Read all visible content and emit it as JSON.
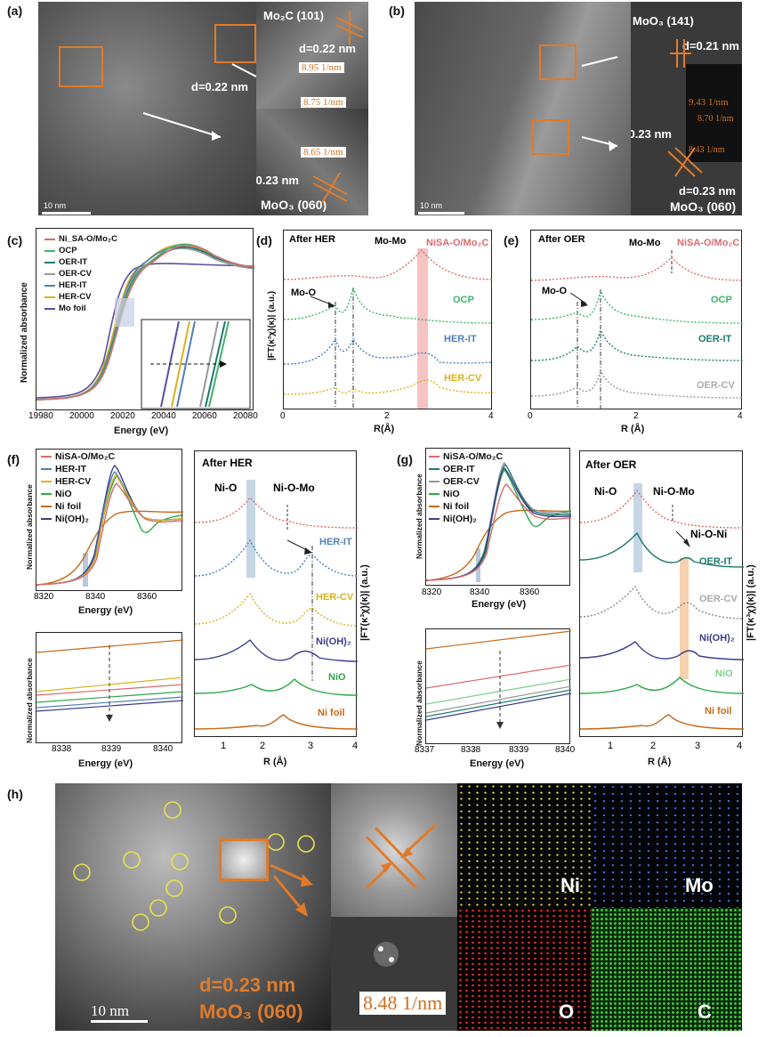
{
  "panels": {
    "a": {
      "letter": "(a)",
      "labels": {
        "mo2c": "Mo₂C (101)",
        "d1": "d=0.22 nm",
        "d2": "d=0.22 nm",
        "d3": "d=0.23 nm",
        "moo3": "MoO₃ (060)"
      },
      "fft": [
        "8.95 1/nm",
        "8.75 1/nm",
        "8.65 1/nm"
      ],
      "scale": "10 nm"
    },
    "b": {
      "letter": "(b)",
      "labels": {
        "moo3_141": "MoO₃ (141)",
        "d1": "d=0.21 nm",
        "d2": "d=0.23 nm",
        "d3": "d=0.23 nm",
        "moo3_060": "MoO₃ (060)"
      },
      "fft": [
        "9.43 1/nm",
        "8.70 1/nm",
        "8.43 1/nm"
      ],
      "scale": "10 nm"
    },
    "c": {
      "letter": "(c)",
      "ylabel": "Normalized absorbance",
      "xlabel": "Energy (eV)",
      "legend": [
        "Ni_SA-O/Mo₂C",
        "OCP",
        "OER-IT",
        "OER-CV",
        "HER-IT",
        "HER-CV",
        "Mo foil"
      ]
    },
    "d": {
      "letter": "(d)",
      "title": "After HER",
      "peak": "Mo-Mo",
      "mo_o": "Mo-O",
      "ylabel": "|FT(κ³χ)(κ)| (a.u.)",
      "xlabel": "R(Å)",
      "curve_labels": [
        "NiSA-O/Mo₂C",
        "OCP",
        "HER-IT",
        "HER-CV"
      ]
    },
    "e": {
      "letter": "(e)",
      "title": "After OER",
      "peak": "Mo-Mo",
      "mo_o": "Mo-O",
      "xlabel": "R (Å)",
      "curve_labels": [
        "NiSA-O/Mo₂C",
        "OCP",
        "OER-IT",
        "OER-CV"
      ]
    },
    "f": {
      "letter": "(f)",
      "legend": [
        "NiSA-O/Mo₂C",
        "HER-IT",
        "HER-CV",
        "NiO",
        "Ni foil",
        "Ni(OH)₂"
      ],
      "xlabel": "Energy (eV)",
      "ylabel": "Normalized absorbance",
      "ft_title": "After HER",
      "ni_o": "Ni-O",
      "ni_o_mo": "Ni-O-Mo",
      "ft_ylabel": "|FT(κ³χ)(κ)| (a.u.)",
      "ft_xlabel": "R (Å)",
      "curve_labels": [
        "HER-IT",
        "HER-CV",
        "Ni(OH)₂",
        "NiO",
        "Ni foil"
      ]
    },
    "g": {
      "letter": "(g)",
      "legend": [
        "NiSA-O/Mo₂C",
        "OER-IT",
        "OER-CV",
        "NiO",
        "Ni foil",
        "Ni(OH)₂"
      ],
      "xlabel": "Energy (eV)",
      "ylabel": "Normalized absorbance",
      "ft_title": "After OER",
      "ni_o": "Ni-O",
      "ni_o_mo": "Ni-O-Mo",
      "ni_o_ni": "Ni-O-Ni",
      "ft_ylabel": "|FT(κ³χ)(κ)| (a.u.)",
      "ft_xlabel": "R (Å)",
      "curve_labels": [
        "OER-IT",
        "OER-CV",
        "Ni(OH)₂",
        "NiO",
        "Ni foil"
      ]
    },
    "h": {
      "letter": "(h)",
      "d": "d=0.23 nm",
      "plane": "MoO₃ (060)",
      "fft": "8.48 1/nm",
      "scale": "10 nm",
      "elements": [
        "Ni",
        "Mo",
        "O",
        "C"
      ]
    }
  },
  "ticks": {
    "c_x": [
      "19980",
      "20000",
      "20020",
      "20040",
      "20060",
      "20080"
    ],
    "de_x": [
      "0",
      "2",
      "4"
    ],
    "fg_x": [
      "8320",
      "8340",
      "8360"
    ],
    "f_bottom_x": [
      "8338",
      "8339",
      "8340"
    ],
    "g_bottom_x": [
      "8337",
      "8338",
      "8339",
      "8340"
    ],
    "ft_x": [
      "1",
      "2",
      "3",
      "4"
    ]
  },
  "colors": {
    "nisa": "#d96b6b",
    "ocp": "#3fb46b",
    "oer_it": "#1f7a6e",
    "oer_cv": "#999999",
    "her_it": "#4f7fb8",
    "her_cv": "#d8b31c",
    "mo_foil": "#5a4fa0",
    "nio": "#2da84a",
    "ni_foil": "#c46a1a",
    "nioh2": "#3b3d8c",
    "accent": "#e07b2a"
  },
  "chart_data": [
    {
      "type": "line",
      "panel": "c",
      "xlabel": "Energy (eV)",
      "ylabel": "Normalized absorbance",
      "xlim": [
        19970,
        20080
      ],
      "series": [
        {
          "name": "Ni_SA-O/Mo2C",
          "x": [
            19970,
            19990,
            20000,
            20005,
            20010,
            20015,
            20020,
            20030,
            20040,
            20050,
            20060,
            20080
          ],
          "y": [
            0.05,
            0.07,
            0.12,
            0.35,
            0.62,
            0.8,
            0.95,
            1.05,
            1.15,
            1.08,
            1.0,
            0.98
          ]
        },
        {
          "name": "OCP",
          "x": [
            19970,
            19990,
            20000,
            20005,
            20010,
            20015,
            20020,
            20030,
            20040,
            20050,
            20060,
            20080
          ],
          "y": [
            0.05,
            0.07,
            0.12,
            0.33,
            0.6,
            0.78,
            0.95,
            1.08,
            1.18,
            1.1,
            1.0,
            0.98
          ]
        },
        {
          "name": "Mo foil",
          "x": [
            19970,
            19990,
            20000,
            20005,
            20010,
            20015,
            20020,
            20030,
            20040,
            20050,
            20060,
            20080
          ],
          "y": [
            0.05,
            0.08,
            0.2,
            0.55,
            0.78,
            0.9,
            0.98,
            1.02,
            1.05,
            1.02,
            0.99,
            0.98
          ]
        }
      ]
    },
    {
      "type": "line",
      "panel": "d",
      "xlabel": "R(Å)",
      "ylabel": "|FT(κ³χ)(κ)| (a.u.)",
      "xlim": [
        0,
        4
      ],
      "annotations": {
        "Mo-O": 1.3,
        "Mo-Mo": 2.7
      }
    },
    {
      "type": "line",
      "panel": "e",
      "xlabel": "R (Å)",
      "xlim": [
        0,
        4
      ],
      "annotations": {
        "Mo-O": 1.3,
        "Mo-Mo": 2.7
      }
    }
  ]
}
